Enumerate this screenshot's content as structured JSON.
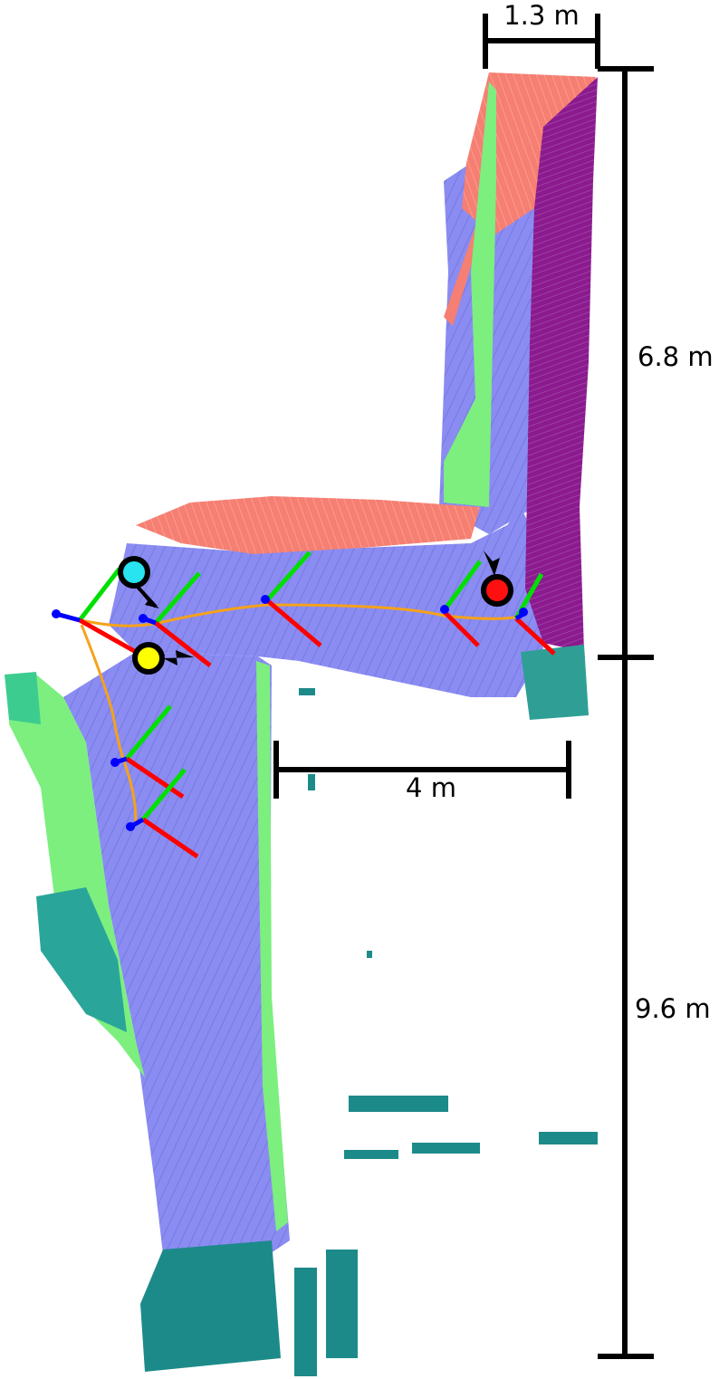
{
  "dimensions": {
    "top_width": "1.3 m",
    "upper_height": "6.8 m",
    "lower_height": "9.6 m",
    "corridor_length": "4 m"
  },
  "colors": {
    "floor": "#8a8cf2",
    "wall_green": "#7cef7f",
    "ceiling_red": "#f47f72",
    "wall_purple": "#8b1a8f",
    "teal": "#1d8a8a",
    "trajectory": "#f5a21b",
    "axis_x": "#ff0000",
    "axis_y": "#00e000",
    "axis_z": "#0000ff",
    "marker_cyan": "#28e3f0",
    "marker_yellow": "#ffff00",
    "marker_red": "#ff1010"
  },
  "markers": [
    {
      "name": "cyan",
      "color": "marker_cyan"
    },
    {
      "name": "yellow",
      "color": "marker_yellow"
    },
    {
      "name": "red",
      "color": "marker_red"
    }
  ]
}
